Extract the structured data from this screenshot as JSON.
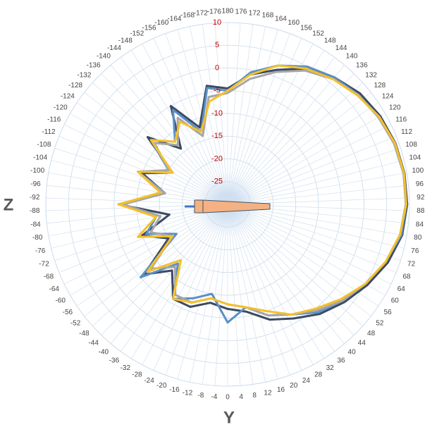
{
  "chart_data": {
    "type": "polar",
    "left_label": "Z",
    "bottom_label": "Y",
    "theta": [
      -180,
      -170,
      -160,
      -150,
      -140,
      -130,
      -120,
      -110,
      -100,
      -90,
      -80,
      -70,
      -60,
      -50,
      -40,
      -30,
      -20,
      -10,
      0,
      10,
      20,
      30,
      40,
      50,
      60,
      70,
      80,
      90,
      100,
      110,
      120,
      130,
      140,
      150,
      160,
      170,
      180
    ],
    "series": [
      {
        "color": "#3b4a63",
        "values": [
          -4.5,
          -3.5,
          -12,
          -5,
          -14,
          -7,
          -16,
          -10,
          -16,
          -6,
          -17,
          -10,
          -15,
          -6,
          -11,
          -6,
          -6,
          -8,
          -7,
          -6,
          -3,
          -1,
          1.5,
          3.5,
          5.5,
          7.5,
          9,
          9.5,
          9.5,
          9.3,
          8.8,
          8,
          6.5,
          4.5,
          1.5,
          -1,
          -4.5
        ]
      },
      {
        "color": "#5b8fc7",
        "values": [
          -5,
          -4,
          -13,
          -6,
          -12,
          -8,
          -15,
          -9,
          -15,
          -7,
          -14,
          -11,
          -17,
          -5,
          -13,
          -6,
          -8,
          -10,
          -4,
          -7,
          -4,
          -2,
          1,
          3,
          5,
          7,
          8.8,
          9.3,
          9.3,
          9,
          8.5,
          7.5,
          6.5,
          5,
          2.5,
          -0.5,
          -5
        ]
      },
      {
        "color": "#a6a6a6",
        "values": [
          -5.5,
          -6,
          -14,
          -8,
          -13,
          -9,
          -15,
          -9,
          -16,
          -7,
          -15,
          -12,
          -16,
          -8,
          -12,
          -7,
          -7,
          -9,
          -8,
          -7,
          -4,
          -2,
          0.5,
          3,
          5,
          7,
          8.5,
          9.2,
          9.3,
          9,
          8.3,
          7.5,
          6,
          4,
          1,
          -2,
          -5.5
        ]
      },
      {
        "color": "#f5c02a",
        "values": [
          -5,
          -7,
          -13,
          -9,
          -12,
          -8,
          -16,
          -9,
          -15,
          -6,
          -14,
          -9,
          -16,
          -7,
          -14,
          -6,
          -7,
          -9,
          -8,
          -7,
          -5,
          -2,
          0,
          2.5,
          5,
          7,
          8.5,
          9.3,
          9.4,
          9.2,
          8.5,
          7.3,
          6,
          4.5,
          2.5,
          -1,
          -5
        ]
      }
    ],
    "rlim": [
      -30,
      10
    ],
    "rticks": [
      -25,
      -20,
      -15,
      -10,
      -5,
      0,
      5,
      10
    ],
    "thetaticks": [
      -176,
      -172,
      -168,
      -164,
      -160,
      -156,
      -152,
      -148,
      -144,
      -140,
      -136,
      -132,
      -128,
      -124,
      -120,
      -116,
      -112,
      -108,
      -104,
      -100,
      -96,
      -92,
      -88,
      -84,
      -80,
      -76,
      -72,
      -68,
      -64,
      -60,
      -56,
      -52,
      -48,
      -44,
      -40,
      -36,
      -32,
      -28,
      -24,
      -20,
      -16,
      -12,
      -8,
      -4,
      0,
      4,
      8,
      12,
      16,
      20,
      24,
      28,
      32,
      36,
      40,
      44,
      48,
      52,
      56,
      60,
      64,
      68,
      72,
      76,
      80,
      84,
      88,
      92,
      96,
      100,
      104,
      108,
      112,
      116,
      120,
      124,
      128,
      132,
      136,
      140,
      144,
      148,
      152,
      156,
      160,
      164,
      168,
      172,
      176,
      180
    ],
    "grid": true
  }
}
